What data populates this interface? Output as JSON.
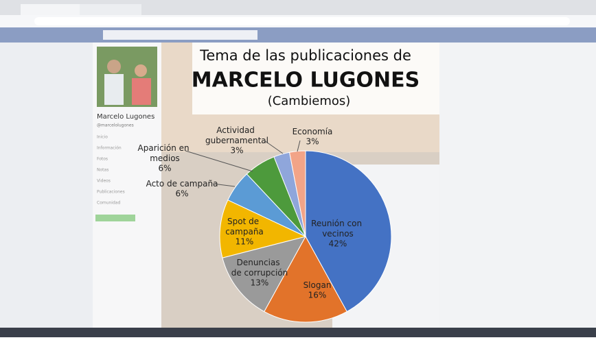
{
  "profile": {
    "name": "Marcelo Lugones",
    "handle": "@marcelolugones",
    "menu": [
      "Inicio",
      "Información",
      "Fotos",
      "Notas",
      "Videos",
      "Publicaciones",
      "Comunidad"
    ]
  },
  "chart_data": {
    "type": "pie",
    "title": "Tema de las publicaciones de",
    "subtitle": "MARCELO LUGONES",
    "note": "(Cambiemos)",
    "categories": [
      "Reunión con vecinos",
      "Slogan",
      "Denuncias de corrupción",
      "Spot de campaña",
      "Acto de campaña",
      "Aparición en medios",
      "Actividad gubernamental",
      "Economía"
    ],
    "values": [
      42,
      16,
      13,
      11,
      6,
      6,
      3,
      3
    ],
    "value_labels": [
      "42%",
      "16%",
      "13%",
      "11%",
      "6%",
      "6%",
      "3%",
      "3%"
    ],
    "colors": [
      "#4472c4",
      "#e2732a",
      "#9a9a9a",
      "#f2b600",
      "#5b9bd5",
      "#4d9a3c",
      "#8fa6db",
      "#f2a488"
    ]
  }
}
